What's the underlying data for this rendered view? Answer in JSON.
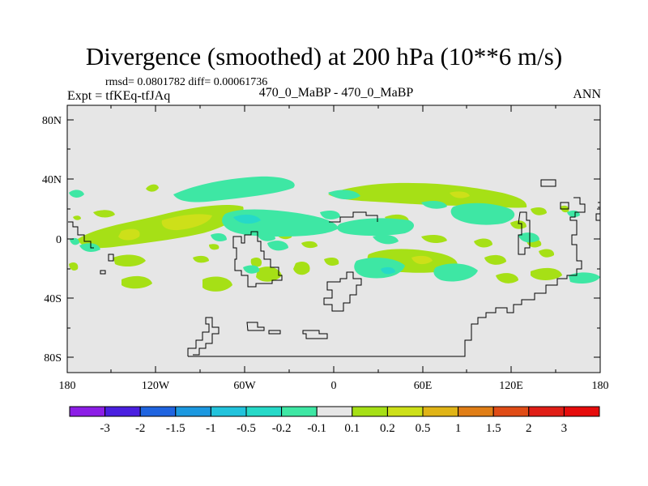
{
  "title": "Divergence (smoothed) at 200 hPa (10**6 m/s)",
  "stats_line": "rmsd= 0.0801782 diff= 0.00061736",
  "experiment_label": "Expt = tfKEq-tfJAq",
  "center_label": "470_0_MaBP - 470_0_MaBP",
  "season_label": "ANN",
  "lat_ticks": [
    "80N",
    "40N",
    "0",
    "40S",
    "80S"
  ],
  "lon_ticks": [
    "180",
    "120W",
    "60W",
    "0",
    "60E",
    "120E",
    "180"
  ],
  "colorbar": {
    "labels": [
      "-3",
      "-2",
      "-1.5",
      "-1",
      "-0.5",
      "-0.2",
      "-0.1",
      "0.1",
      "0.2",
      "0.5",
      "1",
      "1.5",
      "2",
      "3"
    ],
    "colors": [
      "#8c1ee6",
      "#4a1fe0",
      "#1f64e0",
      "#1b98e0",
      "#22c3dc",
      "#26d9c8",
      "#3ee7a4",
      "#e6e6e6",
      "#a6e016",
      "#cde019",
      "#e0b416",
      "#e07e16",
      "#e04c16",
      "#e01e16",
      "#e60c0c"
    ]
  },
  "colors": {
    "land_bg": "#e6e6e6",
    "coast": "#000000",
    "pos_low": "#a6e016",
    "pos_mid": "#cde019",
    "neg_low": "#3ee7a4",
    "neg_mid": "#26d9c8"
  }
}
